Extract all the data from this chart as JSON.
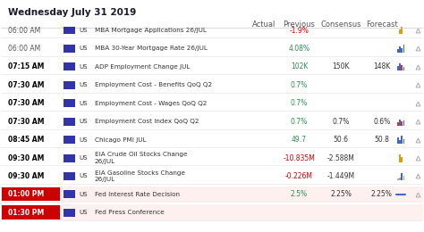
{
  "title": "Wednesday July 31 2019",
  "headers": [
    "",
    "",
    "",
    "Actual",
    "Previous",
    "Consensus",
    "Forecast",
    ""
  ],
  "rows": [
    {
      "time": "06:00 AM",
      "bold_time": false,
      "country": "US",
      "event": "MBA Mortgage Applications 26/JUL",
      "actual": "",
      "previous": "-1.9%",
      "consensus": "",
      "forecast": "",
      "prev_color": "red",
      "chart": "bar_gold",
      "has_triangle": true
    },
    {
      "time": "06:00 AM",
      "bold_time": false,
      "country": "US",
      "event": "MBA 30-Year Mortgage Rate 26/JUL",
      "actual": "",
      "previous": "4.08%",
      "consensus": "",
      "forecast": "",
      "prev_color": "green",
      "chart": "bar_blue",
      "has_triangle": true
    },
    {
      "time": "07:15 AM",
      "bold_time": true,
      "country": "US",
      "event": "ADP Employment Change JUL",
      "actual": "",
      "previous": "102K",
      "consensus": "150K",
      "forecast": "148K",
      "prev_color": "green",
      "chart": "bar_blue_red",
      "has_triangle": true
    },
    {
      "time": "07:30 AM",
      "bold_time": true,
      "country": "US",
      "event": "Employment Cost - Benefits QoQ Q2",
      "actual": "",
      "previous": "0.7%",
      "consensus": "",
      "forecast": "",
      "prev_color": "green",
      "chart": "",
      "has_triangle": true
    },
    {
      "time": "07:30 AM",
      "bold_time": true,
      "country": "US",
      "event": "Employment Cost - Wages QoQ Q2",
      "actual": "",
      "previous": "0.7%",
      "consensus": "",
      "forecast": "",
      "prev_color": "green",
      "chart": "",
      "has_triangle": true
    },
    {
      "time": "07:30 AM",
      "bold_time": true,
      "country": "US",
      "event": "Employment Cost Index QoQ Q2",
      "actual": "",
      "previous": "0.7%",
      "consensus": "0.7%",
      "forecast": "0.6%",
      "prev_color": "green",
      "chart": "bar_blue_small",
      "has_triangle": true
    },
    {
      "time": "08:45 AM",
      "bold_time": true,
      "country": "US",
      "event": "Chicago PMI JUL",
      "actual": "",
      "previous": "49.7",
      "consensus": "50.6",
      "forecast": "50.8",
      "prev_color": "green",
      "chart": "bar_blue_tall",
      "has_triangle": true
    },
    {
      "time": "09:30 AM",
      "bold_time": true,
      "country": "US",
      "event": "EIA Crude Oil Stocks Change\n26/JUL",
      "actual": "",
      "previous": "-10.835M",
      "consensus": "-2.588M",
      "forecast": "",
      "prev_color": "red",
      "chart": "bar_gold2",
      "has_triangle": true
    },
    {
      "time": "09:30 AM",
      "bold_time": true,
      "country": "US",
      "event": "EIA Gasoline Stocks Change\n26/JUL",
      "actual": "",
      "previous": "-0.226M",
      "consensus": "-1.449M",
      "forecast": "",
      "prev_color": "red",
      "chart": "bar_blue_tiny",
      "has_triangle": true
    },
    {
      "time": "01:00 PM",
      "bold_time": true,
      "country": "US",
      "event": "Fed Interest Rate Decision",
      "actual": "",
      "previous": "2.5%",
      "consensus": "2.25%",
      "forecast": "2.25%",
      "prev_color": "green",
      "chart": "line_blue",
      "has_triangle": true,
      "highlight": true
    },
    {
      "time": "01:30 PM",
      "bold_time": true,
      "country": "US",
      "event": "Fed Press Conference",
      "actual": "",
      "previous": "",
      "consensus": "",
      "forecast": "",
      "prev_color": "black",
      "chart": "",
      "has_triangle": false,
      "highlight": true
    }
  ],
  "bg_color": "#f5f5f5",
  "header_bg": "#ffffff",
  "row_bg": "#ffffff",
  "alt_row_bg": "#f9f9f9",
  "highlight_color": "#cc0000",
  "title_color": "#1a1a2e",
  "green_color": "#2e8b57",
  "red_color": "#cc0000",
  "text_color": "#333333",
  "time_bold_color": "#000000",
  "border_color": "#dddddd"
}
